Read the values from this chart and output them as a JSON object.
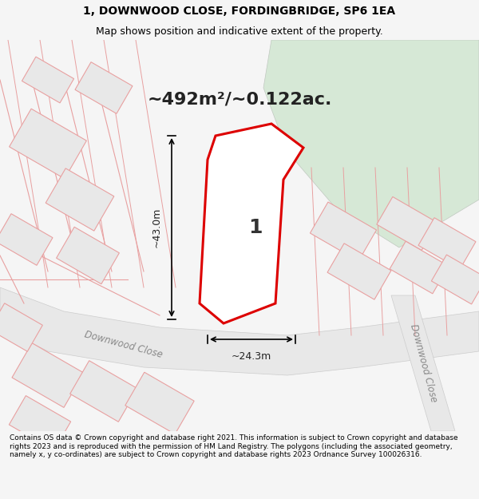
{
  "title_line1": "1, DOWNWOOD CLOSE, FORDINGBRIDGE, SP6 1EA",
  "title_line2": "Map shows position and indicative extent of the property.",
  "area_text": "~492m²/~0.122ac.",
  "dim_vertical": "~43.0m",
  "dim_horizontal": "~24.3m",
  "label_number": "1",
  "road_label1": "Downwood Close",
  "road_label2": "Downwood Close",
  "footer": "Contains OS data © Crown copyright and database right 2021. This information is subject to Crown copyright and database rights 2023 and is reproduced with the permission of HM Land Registry. The polygons (including the associated geometry, namely x, y co-ordinates) are subject to Crown copyright and database rights 2023 Ordnance Survey 100026316.",
  "bg_color": "#f5f5f5",
  "map_bg": "#ffffff",
  "green_area_color": "#d6e8d6",
  "red_plot_color": "#dd0000",
  "road_fill": "#e8e8e8",
  "plot_fill": "#ffffff",
  "building_fill": "#e0e0e0",
  "pink_line_color": "#e8a0a0"
}
